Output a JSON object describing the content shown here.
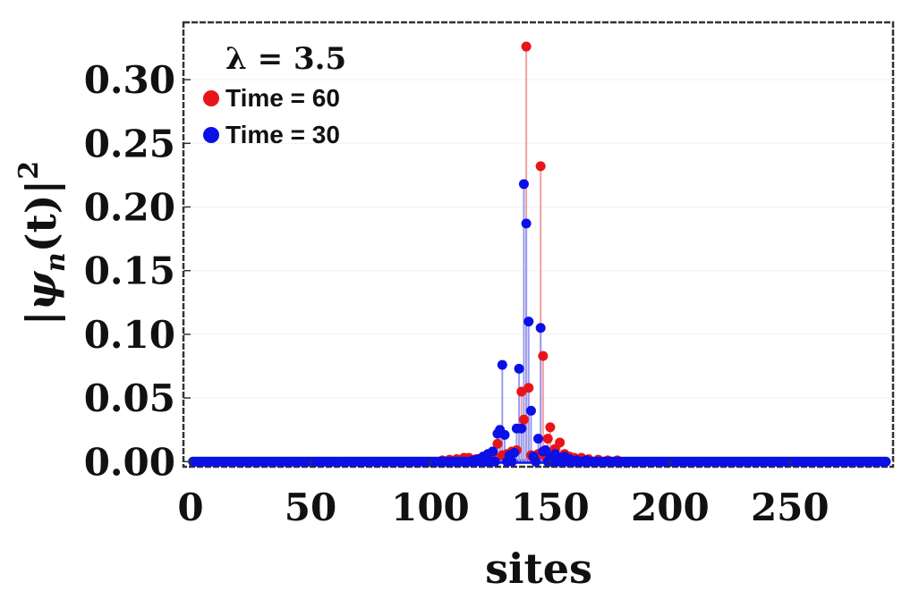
{
  "chart_data": {
    "type": "scatter",
    "title": "",
    "xlabel": "sites",
    "ylabel_text": "|ψ",
    "ylabel_sub": "n",
    "ylabel_rest": "(t)|",
    "ylabel_sup": "2",
    "xlim": [
      -3,
      293
    ],
    "ylim": [
      -0.004,
      0.345
    ],
    "xticks": [
      0,
      50,
      100,
      150,
      200,
      250
    ],
    "yticks": [
      0.0,
      0.05,
      0.1,
      0.15,
      0.2,
      0.25,
      0.3
    ],
    "ytick_labels": [
      "0.00",
      "0.05",
      "0.10",
      "0.15",
      "0.20",
      "0.25",
      "0.30"
    ],
    "legend_title": "λ = 3.5",
    "legend_position": "top-left",
    "n_sites": 290,
    "series": [
      {
        "name": "Time = 60",
        "color": "#e8141a",
        "stem_color": "#f2a0a2",
        "points": [
          [
            105,
            0.001
          ],
          [
            108,
            0.0015
          ],
          [
            111,
            0.002
          ],
          [
            114,
            0.003
          ],
          [
            116,
            0.003
          ],
          [
            119,
            0.002
          ],
          [
            122,
            0.003
          ],
          [
            124,
            0.004
          ],
          [
            126,
            0.006
          ],
          [
            128,
            0.014
          ],
          [
            130,
            0.005
          ],
          [
            132,
            0.006
          ],
          [
            134,
            0.008
          ],
          [
            136,
            0.009
          ],
          [
            138,
            0.055
          ],
          [
            139,
            0.033
          ],
          [
            140,
            0.326
          ],
          [
            141,
            0.058
          ],
          [
            142,
            0.005
          ],
          [
            143,
            0.003
          ],
          [
            145,
            0.006
          ],
          [
            146,
            0.232
          ],
          [
            147,
            0.083
          ],
          [
            148,
            0.004
          ],
          [
            149,
            0.018
          ],
          [
            150,
            0.027
          ],
          [
            152,
            0.01
          ],
          [
            154,
            0.015
          ],
          [
            156,
            0.006
          ],
          [
            158,
            0.004
          ],
          [
            160,
            0.003
          ],
          [
            163,
            0.003
          ],
          [
            166,
            0.002
          ],
          [
            170,
            0.0015
          ],
          [
            174,
            0.001
          ],
          [
            178,
            0.001
          ]
        ]
      },
      {
        "name": "Time = 30",
        "color": "#0a10e6",
        "stem_color": "#9a9cf0",
        "points": [
          [
            118,
            0.001
          ],
          [
            120,
            0.002
          ],
          [
            122,
            0.004
          ],
          [
            124,
            0.006
          ],
          [
            126,
            0.008
          ],
          [
            128,
            0.022
          ],
          [
            129,
            0.025
          ],
          [
            130,
            0.076
          ],
          [
            131,
            0.021
          ],
          [
            133,
            0.005
          ],
          [
            135,
            0.007
          ],
          [
            136,
            0.026
          ],
          [
            137,
            0.073
          ],
          [
            138,
            0.026
          ],
          [
            139,
            0.218
          ],
          [
            140,
            0.187
          ],
          [
            141,
            0.11
          ],
          [
            142,
            0.04
          ],
          [
            143,
            0.004
          ],
          [
            145,
            0.018
          ],
          [
            146,
            0.105
          ],
          [
            147,
            0.008
          ],
          [
            148,
            0.009
          ],
          [
            150,
            0.004
          ],
          [
            152,
            0.006
          ],
          [
            154,
            0.003
          ],
          [
            156,
            0.004
          ],
          [
            158,
            0.002
          ],
          [
            161,
            0.001
          ],
          [
            165,
            0.001
          ]
        ]
      }
    ]
  }
}
